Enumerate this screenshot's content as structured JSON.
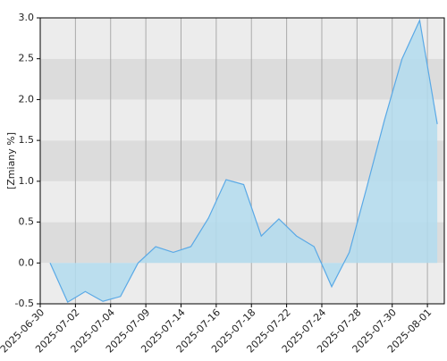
{
  "chart_data": {
    "type": "area",
    "y_label": "[Zmiany %]",
    "x": [
      0,
      1,
      2,
      3,
      4,
      5,
      6,
      7,
      8,
      9,
      10,
      11,
      12,
      13,
      14,
      15,
      16,
      17,
      18,
      19,
      20,
      21,
      22
    ],
    "xlim": [
      -0.56,
      22.4
    ],
    "xticks": [
      {
        "value": -0.56,
        "label": "2025-06-30"
      },
      {
        "value": 1.44,
        "label": "2025-07-02"
      },
      {
        "value": 3.44,
        "label": "2025-07-04"
      },
      {
        "value": 5.44,
        "label": "2025-07-09"
      },
      {
        "value": 7.44,
        "label": "2025-07-14"
      },
      {
        "value": 9.44,
        "label": "2025-07-16"
      },
      {
        "value": 11.44,
        "label": "2025-07-18"
      },
      {
        "value": 13.44,
        "label": "2025-07-22"
      },
      {
        "value": 15.44,
        "label": "2025-07-24"
      },
      {
        "value": 17.44,
        "label": "2025-07-28"
      },
      {
        "value": 19.44,
        "label": "2025-07-30"
      },
      {
        "value": 21.44,
        "label": "2025-08-01"
      }
    ],
    "series": [
      {
        "color": "#5aa9e6",
        "fill": "#b3dcee",
        "values": [
          0.0,
          -0.48,
          -0.35,
          -0.47,
          -0.41,
          0.0,
          0.2,
          0.13,
          0.2,
          0.55,
          1.02,
          0.96,
          0.33,
          0.54,
          0.33,
          0.2,
          -0.29,
          0.13,
          0.93,
          1.75,
          2.5,
          2.97,
          1.7
        ]
      }
    ],
    "ylim": [
      -0.5,
      3.0
    ],
    "yticks": [
      -0.5,
      {
        "value": 0,
        "label": "0.0"
      },
      0.5,
      {
        "value": 1,
        "label": "1.0"
      },
      1.5,
      {
        "value": 2,
        "label": "2.0"
      },
      2.5,
      {
        "value": 3,
        "label": "3.0"
      }
    ],
    "band_colors": [
      "#ececec",
      "#dcdcdc"
    ],
    "grid": true
  }
}
